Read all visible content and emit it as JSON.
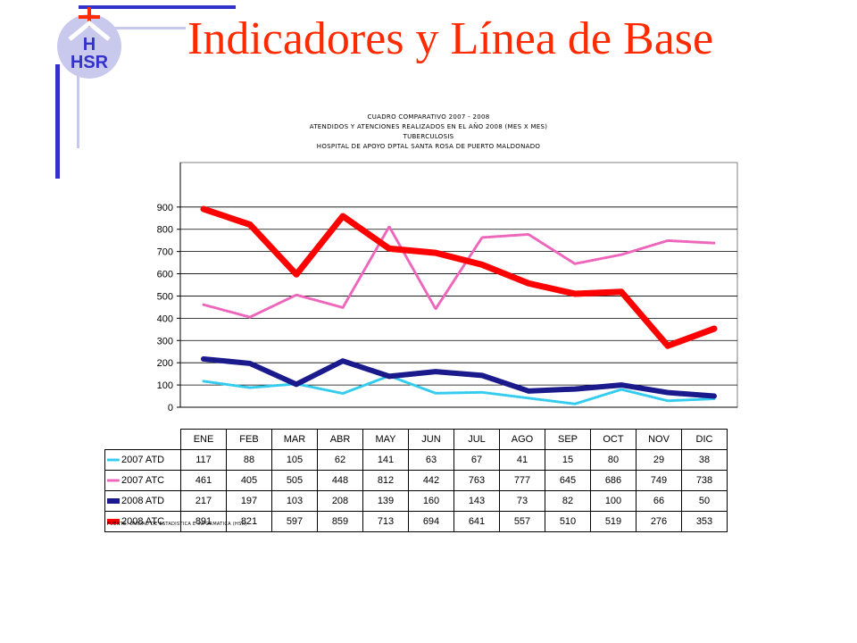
{
  "slide": {
    "title": "Indicadores y Línea de Base",
    "logo_text": "HSR",
    "accent": "#ff2a00",
    "deco_color": "#3333cc"
  },
  "chart_data": {
    "type": "line",
    "title_lines": [
      "CUADRO COMPARATIVO 2007 - 2008",
      "ATENDIDOS Y ATENCIONES REALIZADOS EN EL AÑO 2008 (MES X MES)",
      "TUBERCULOSIS",
      "HOSPITAL DE APOYO DPTAL SANTA ROSA DE PUERTO MALDONADO"
    ],
    "categories": [
      "ENE",
      "FEB",
      "MAR",
      "ABR",
      "MAY",
      "JUN",
      "JUL",
      "AGO",
      "SEP",
      "OCT",
      "NOV",
      "DIC"
    ],
    "yticks": [
      "0",
      "100",
      "200",
      "300",
      "400",
      "500",
      "600",
      "700",
      "800",
      "900"
    ],
    "ylim": [
      0,
      1100
    ],
    "grid": true,
    "legend": "table-below",
    "series": [
      {
        "name": "2007 ATD",
        "values": [
          117,
          88,
          105,
          62,
          141,
          63,
          67,
          41,
          15,
          80,
          29,
          38
        ],
        "color": "#33ccee",
        "style": "dotted"
      },
      {
        "name": "2007 ATC",
        "values": [
          461,
          405,
          505,
          448,
          812,
          442,
          763,
          777,
          645,
          686,
          749,
          738
        ],
        "color": "#ee66bb",
        "style": "dotted"
      },
      {
        "name": "2008 ATD",
        "values": [
          217,
          197,
          103,
          208,
          139,
          160,
          143,
          73,
          82,
          100,
          66,
          50
        ],
        "color": "#1a1a8c",
        "style": "solid"
      },
      {
        "name": "2008 ATC",
        "values": [
          891,
          821,
          597,
          859,
          713,
          694,
          641,
          557,
          510,
          519,
          276,
          353
        ],
        "color": "#ff0000",
        "style": "solid"
      }
    ],
    "source": "FUENTE: UNIDAD DE ESTADISTICA E INFORMATICA (HSR)"
  }
}
